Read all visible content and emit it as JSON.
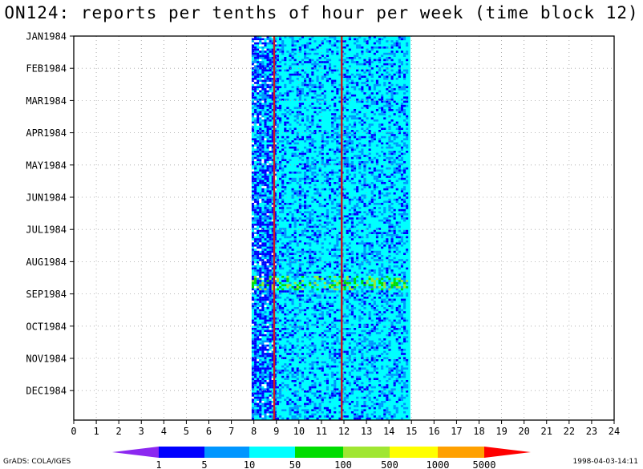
{
  "chart_data": {
    "type": "heatmap",
    "title": "ON124: reports per tenths of hour per week (time block 12)",
    "x_axis": {
      "label": "",
      "range": [
        0,
        24
      ],
      "ticks": [
        "0",
        "1",
        "2",
        "3",
        "4",
        "5",
        "6",
        "7",
        "8",
        "9",
        "10",
        "11",
        "12",
        "13",
        "14",
        "15",
        "16",
        "17",
        "18",
        "19",
        "20",
        "21",
        "22",
        "23",
        "24"
      ]
    },
    "y_axis": {
      "label": "",
      "ticks": [
        "JAN1984",
        "FEB1984",
        "MAR1984",
        "APR1984",
        "MAY1984",
        "JUN1984",
        "JUL1984",
        "AUG1984",
        "SEP1984",
        "OCT1984",
        "NOV1984",
        "DEC1984"
      ],
      "direction": "top-to-bottom"
    },
    "grid": true,
    "data_extent_hours": [
      7.9,
      14.95
    ],
    "reference_lines_hours": [
      8.9,
      11.9
    ],
    "reference_line_color": "#c81e1e",
    "colorbar": {
      "labels": [
        "1",
        "5",
        "10",
        "50",
        "100",
        "500",
        "1000",
        "5000"
      ],
      "colors": [
        "#8c28f0",
        "#0000ff",
        "#0096ff",
        "#00ffff",
        "#00dc00",
        "#a0e632",
        "#ffff00",
        "#ffa000",
        "#ff0000"
      ]
    },
    "description_values": {
      "dominant_bin": "10-50",
      "period_weeks": 52
    }
  },
  "footer": {
    "left": "GrADS: COLA/IGES",
    "right": "1998-04-03-14:11"
  }
}
